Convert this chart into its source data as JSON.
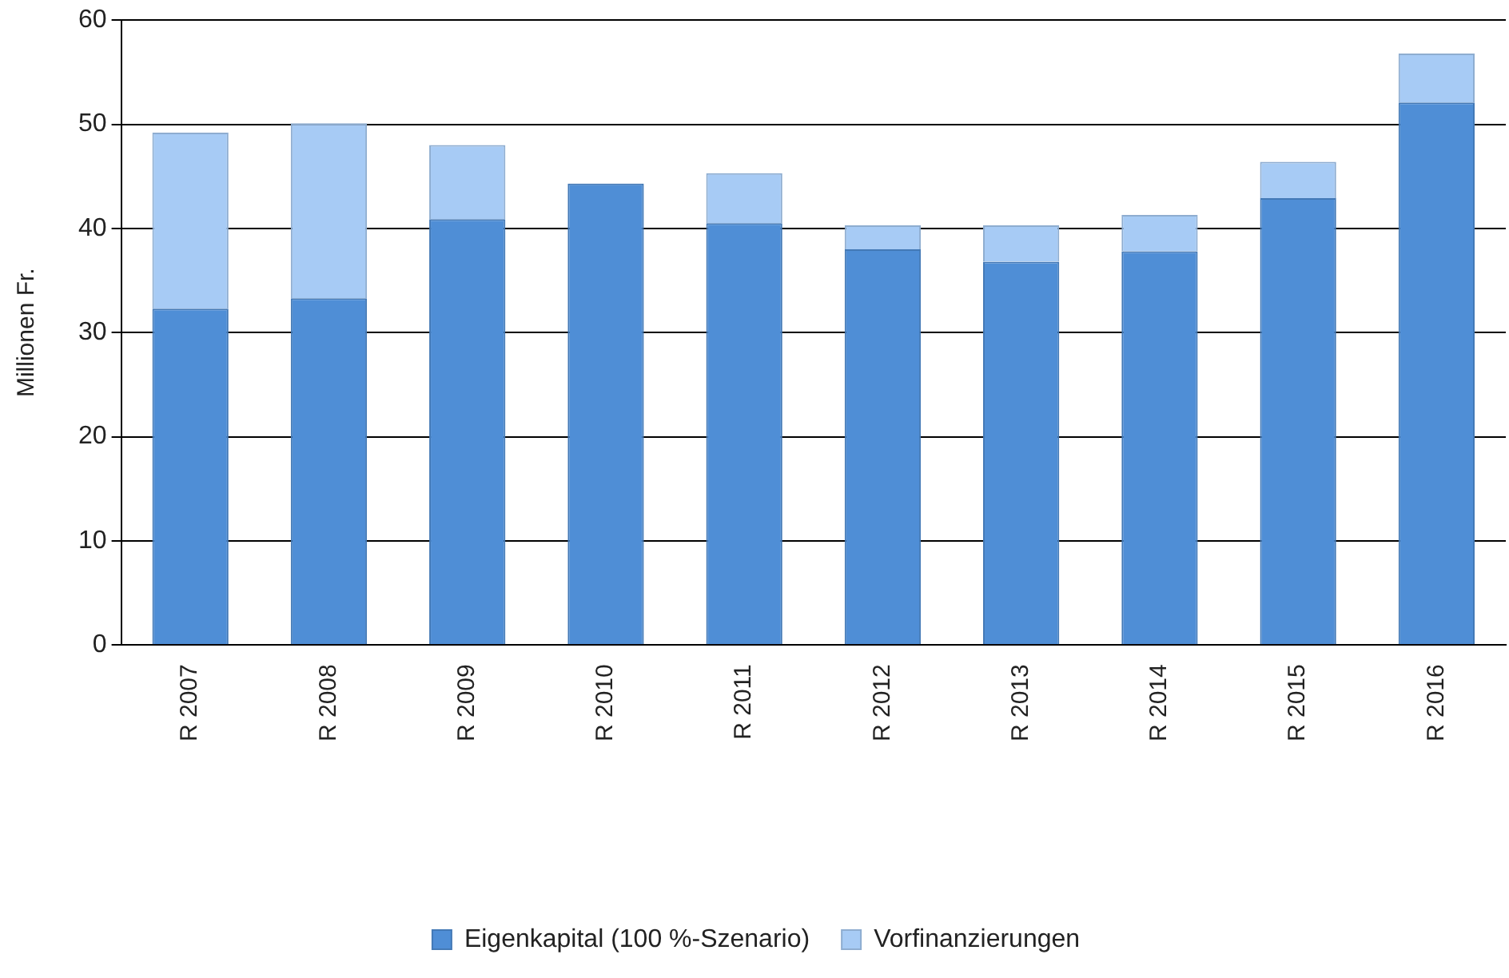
{
  "chart_data": {
    "type": "bar",
    "stacked": true,
    "ylabel": "Millionen Fr.",
    "categories": [
      "R 2007",
      "R 2008",
      "R 2009",
      "R 2010",
      "R 2011",
      "R 2012",
      "R 2013",
      "R 2014",
      "R 2015",
      "R 2016"
    ],
    "series": [
      {
        "name": "Eigenkapital (100 %-Szenario)",
        "color": "#4f8ed6",
        "values": [
          32.3,
          33.3,
          40.9,
          44.3,
          40.5,
          38.0,
          36.8,
          37.8,
          42.9,
          52.1
        ]
      },
      {
        "name": "Vorfinanzierungen",
        "color": "#a7cbf5",
        "values": [
          16.9,
          16.8,
          7.1,
          0,
          4.8,
          2.3,
          3.5,
          3.5,
          3.5,
          4.7
        ]
      }
    ],
    "ylim": [
      0,
      60
    ],
    "yticks": [
      0,
      10,
      20,
      30,
      40,
      50,
      60
    ],
    "grid": "y",
    "legend": "bottom"
  }
}
